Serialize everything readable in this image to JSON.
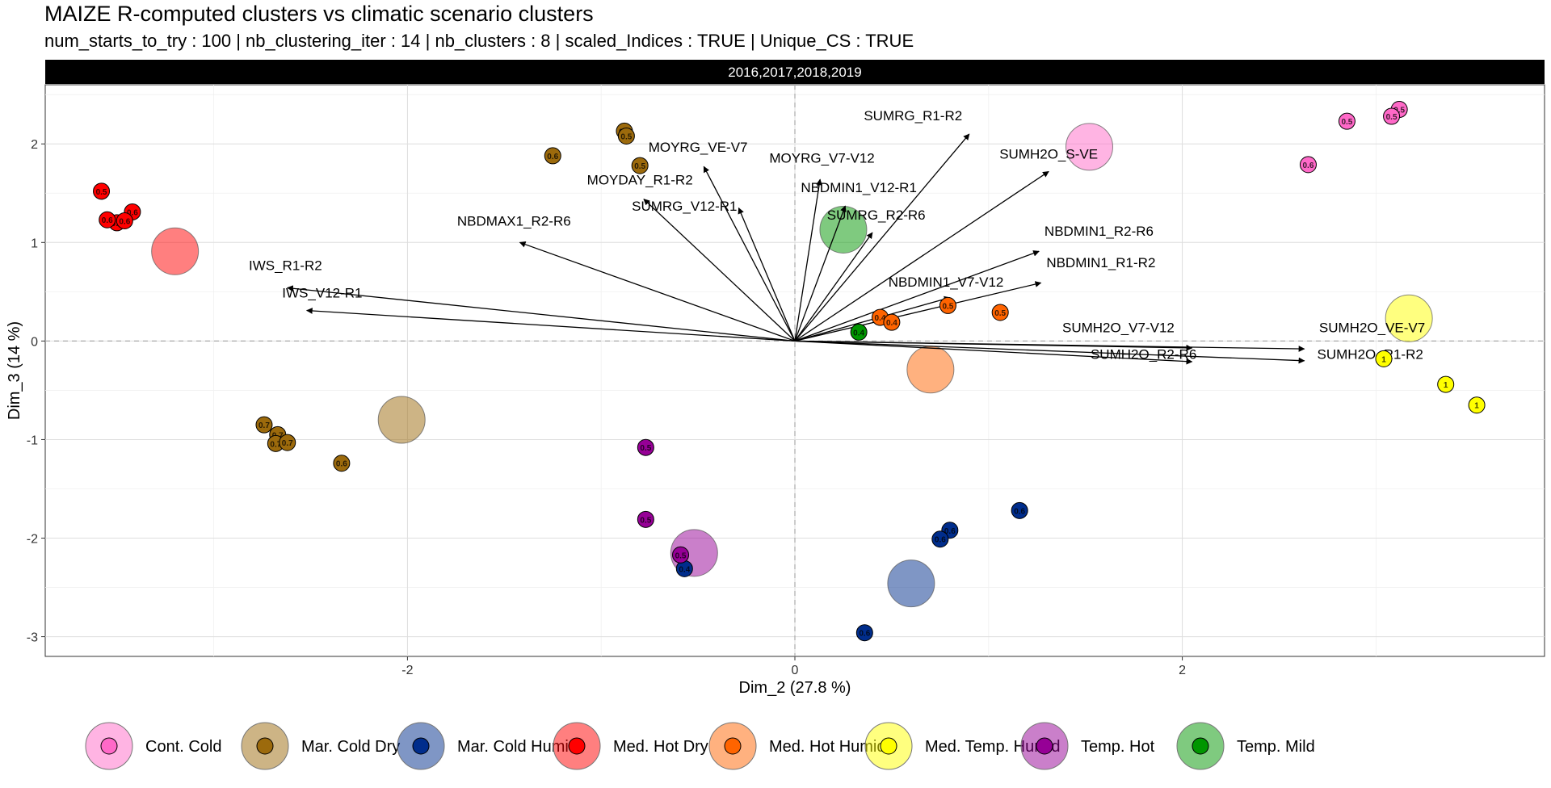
{
  "title": "MAIZE R-computed clusters vs climatic scenario clusters",
  "subtitle": "num_starts_to_try : 100 | nb_clustering_iter : 14 | nb_clusters : 8 | scaled_Indices : TRUE | Unique_CS : TRUE",
  "chart_data": {
    "type": "scatter",
    "panel_label": "2016,2017,2018,2019",
    "xlabel": "Dim_2 (27.8 %)",
    "ylabel": "Dim_3 (14 %)",
    "xlim": [
      -3.87,
      3.87
    ],
    "ylim": [
      -3.2,
      2.6
    ],
    "x_ticks": [
      -2,
      0,
      2
    ],
    "y_ticks": [
      -3,
      -2,
      -1,
      0,
      1,
      2
    ],
    "grid": true,
    "legend_position": "bottom",
    "legend": [
      {
        "name": "Cont. Cold",
        "color": "#FF69C8"
      },
      {
        "name": "Mar. Cold Dry",
        "color": "#9C6A0C"
      },
      {
        "name": "Mar. Cold Humid",
        "color": "#002D8C"
      },
      {
        "name": "Med. Hot Dry",
        "color": "#FF0000"
      },
      {
        "name": "Med. Hot Humid",
        "color": "#FF6400"
      },
      {
        "name": "Med. Temp. Humid",
        "color": "#FFFF00"
      },
      {
        "name": "Temp. Hot",
        "color": "#960096"
      },
      {
        "name": "Temp. Mild",
        "color": "#009600"
      }
    ],
    "centroids": [
      {
        "cluster": "Cont. Cold",
        "x": 1.52,
        "y": 1.97
      },
      {
        "cluster": "Mar. Cold Dry",
        "x": -2.03,
        "y": -0.8
      },
      {
        "cluster": "Mar. Cold Humid",
        "x": 0.6,
        "y": -2.46
      },
      {
        "cluster": "Med. Hot Dry",
        "x": -3.2,
        "y": 0.91
      },
      {
        "cluster": "Med. Hot Humid",
        "x": 0.7,
        "y": -0.29
      },
      {
        "cluster": "Med. Temp. Humid",
        "x": 3.17,
        "y": 0.23
      },
      {
        "cluster": "Temp. Hot",
        "x": -0.52,
        "y": -2.15
      },
      {
        "cluster": "Temp. Mild",
        "x": 0.25,
        "y": 1.13
      }
    ],
    "points": [
      {
        "cluster": "Cont. Cold",
        "x": 3.12,
        "y": 2.35,
        "label": "0.5"
      },
      {
        "cluster": "Cont. Cold",
        "x": 3.08,
        "y": 2.28,
        "label": "0.5"
      },
      {
        "cluster": "Cont. Cold",
        "x": 2.85,
        "y": 2.23,
        "label": "0.5"
      },
      {
        "cluster": "Cont. Cold",
        "x": 2.65,
        "y": 1.79,
        "label": "0.6"
      },
      {
        "cluster": "Mar. Cold Dry",
        "x": -0.88,
        "y": 2.13,
        "label": "0.5"
      },
      {
        "cluster": "Mar. Cold Dry",
        "x": -0.87,
        "y": 2.08,
        "label": "0.5"
      },
      {
        "cluster": "Mar. Cold Dry",
        "x": -0.8,
        "y": 1.78,
        "label": "0.5"
      },
      {
        "cluster": "Mar. Cold Dry",
        "x": -1.25,
        "y": 1.88,
        "label": "0.6"
      },
      {
        "cluster": "Mar. Cold Dry",
        "x": -2.74,
        "y": -0.85,
        "label": "0.7"
      },
      {
        "cluster": "Mar. Cold Dry",
        "x": -2.67,
        "y": -0.95,
        "label": "0.7"
      },
      {
        "cluster": "Mar. Cold Dry",
        "x": -2.68,
        "y": -1.04,
        "label": "0.7"
      },
      {
        "cluster": "Mar. Cold Dry",
        "x": -2.62,
        "y": -1.03,
        "label": "0.7"
      },
      {
        "cluster": "Mar. Cold Dry",
        "x": -2.34,
        "y": -1.24,
        "label": "0.6"
      },
      {
        "cluster": "Mar. Cold Humid",
        "x": 1.16,
        "y": -1.72,
        "label": "0.6"
      },
      {
        "cluster": "Mar. Cold Humid",
        "x": 0.8,
        "y": -1.92,
        "label": "0.6"
      },
      {
        "cluster": "Mar. Cold Humid",
        "x": 0.75,
        "y": -2.01,
        "label": "0.6"
      },
      {
        "cluster": "Mar. Cold Humid",
        "x": -0.57,
        "y": -2.31,
        "label": "0.4"
      },
      {
        "cluster": "Mar. Cold Humid",
        "x": 0.36,
        "y": -2.96,
        "label": "0.6"
      },
      {
        "cluster": "Med. Hot Dry",
        "x": -3.58,
        "y": 1.52,
        "label": "0.5"
      },
      {
        "cluster": "Med. Hot Dry",
        "x": -3.42,
        "y": 1.31,
        "label": "0.6"
      },
      {
        "cluster": "Med. Hot Dry",
        "x": -3.5,
        "y": 1.2,
        "label": "0.6"
      },
      {
        "cluster": "Med. Hot Dry",
        "x": -3.55,
        "y": 1.23,
        "label": "0.6"
      },
      {
        "cluster": "Med. Hot Dry",
        "x": -3.46,
        "y": 1.22,
        "label": "0.6"
      },
      {
        "cluster": "Med. Hot Humid",
        "x": 0.79,
        "y": 0.36,
        "label": "0.5"
      },
      {
        "cluster": "Med. Hot Humid",
        "x": 1.06,
        "y": 0.29,
        "label": "0.5"
      },
      {
        "cluster": "Med. Hot Humid",
        "x": 0.44,
        "y": 0.24,
        "label": "0.4"
      },
      {
        "cluster": "Med. Hot Humid",
        "x": 0.5,
        "y": 0.19,
        "label": "0.4"
      },
      {
        "cluster": "Med. Temp. Humid",
        "x": 3.04,
        "y": -0.18,
        "label": "1"
      },
      {
        "cluster": "Med. Temp. Humid",
        "x": 3.36,
        "y": -0.44,
        "label": "1"
      },
      {
        "cluster": "Med. Temp. Humid",
        "x": 3.52,
        "y": -0.65,
        "label": "1"
      },
      {
        "cluster": "Temp. Hot",
        "x": -0.77,
        "y": -1.08,
        "label": "0.5"
      },
      {
        "cluster": "Temp. Hot",
        "x": -0.77,
        "y": -1.81,
        "label": "0.5"
      },
      {
        "cluster": "Temp. Hot",
        "x": -0.59,
        "y": -2.17,
        "label": "0.5"
      },
      {
        "cluster": "Temp. Mild",
        "x": 0.33,
        "y": 0.09,
        "label": "0.4"
      }
    ],
    "arrows": [
      {
        "name": "SUMRG_R1-R2",
        "x": 0.9,
        "y": 2.1,
        "lx": 0.61,
        "ly": 2.24
      },
      {
        "name": "SUMH2O_S-VE",
        "x": 1.31,
        "y": 1.72,
        "lx": 1.31,
        "ly": 1.85
      },
      {
        "name": "MOYRG_VE-V7",
        "x": -0.47,
        "y": 1.77,
        "lx": -0.5,
        "ly": 1.92
      },
      {
        "name": "MOYRG_V7-V12",
        "x": 0.13,
        "y": 1.64,
        "lx": 0.14,
        "ly": 1.81
      },
      {
        "name": "NBDMIN1_V12-R1",
        "x": 0.26,
        "y": 1.37,
        "lx": 0.33,
        "ly": 1.51
      },
      {
        "name": "SUMRG_R2-R6",
        "x": 0.4,
        "y": 1.1,
        "lx": 0.42,
        "ly": 1.23
      },
      {
        "name": "MOYDAY_R1-R2",
        "x": -0.78,
        "y": 1.44,
        "lx": -0.8,
        "ly": 1.59
      },
      {
        "name": "SUMRG_V12-R1",
        "x": -0.29,
        "y": 1.35,
        "lx": -0.57,
        "ly": 1.32
      },
      {
        "name": "NBDMAX1_R2-R6",
        "x": -1.42,
        "y": 1.0,
        "lx": -1.45,
        "ly": 1.17
      },
      {
        "name": "NBDMIN1_R2-R6",
        "x": 1.26,
        "y": 0.91,
        "lx": 1.57,
        "ly": 1.07
      },
      {
        "name": "NBDMIN1_R1-R2",
        "x": 1.27,
        "y": 0.59,
        "lx": 1.58,
        "ly": 0.75
      },
      {
        "name": "NBDMIN1_V7-V12",
        "x": 0.8,
        "y": 0.44,
        "lx": 0.78,
        "ly": 0.55
      },
      {
        "name": "IWS_R1-R2",
        "x": -2.62,
        "y": 0.54,
        "lx": -2.63,
        "ly": 0.72
      },
      {
        "name": "IWS_V12-R1",
        "x": -2.52,
        "y": 0.31,
        "lx": -2.44,
        "ly": 0.44
      },
      {
        "name": "SUMH2O_V7-V12",
        "x": 2.05,
        "y": -0.07,
        "lx": 1.67,
        "ly": 0.09
      },
      {
        "name": "SUMH2O_VE-V7",
        "x": 2.63,
        "y": -0.08,
        "lx": 2.98,
        "ly": 0.09
      },
      {
        "name": "SUMH2O_R2-R6",
        "x": 2.05,
        "y": -0.21,
        "lx": 1.8,
        "ly": -0.18
      },
      {
        "name": "SUMH2O_R1-R2",
        "x": 2.63,
        "y": -0.2,
        "lx": 2.97,
        "ly": -0.18
      }
    ]
  }
}
